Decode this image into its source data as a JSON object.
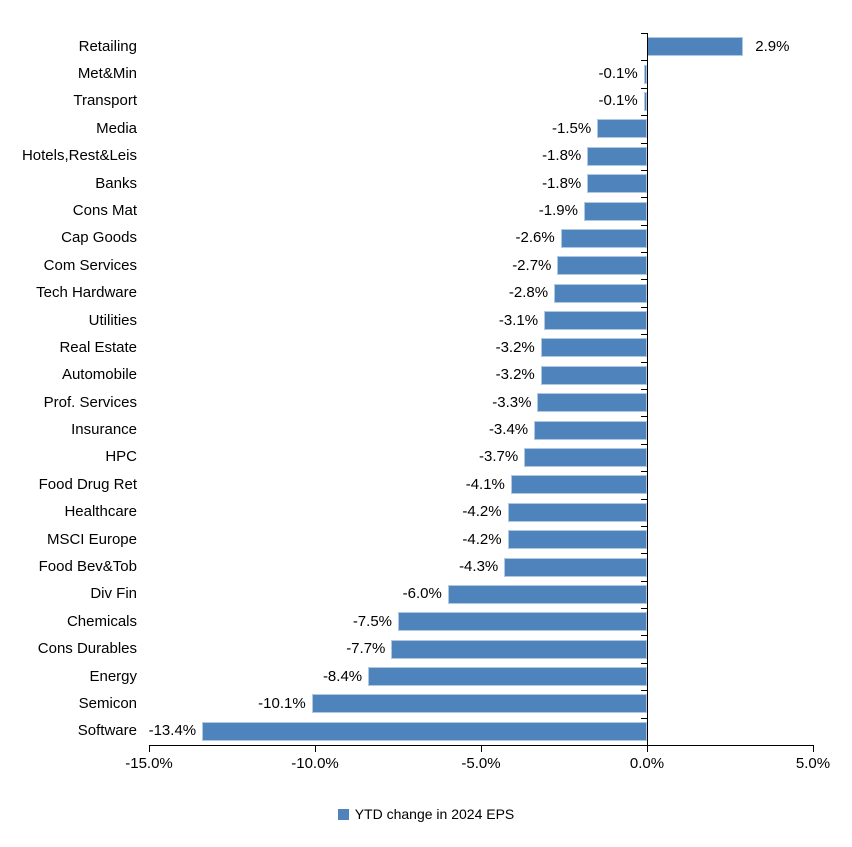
{
  "chart_data": {
    "type": "bar",
    "orientation": "horizontal",
    "title": "",
    "xlabel": "",
    "ylabel": "",
    "xlim": [
      -15,
      5
    ],
    "grid": false,
    "legend_position": "bottom-center",
    "categories": [
      "Retailing",
      "Met&Min",
      "Transport",
      "Media",
      "Hotels,Rest&Leis",
      "Banks",
      "Cons Mat",
      "Cap Goods",
      "Com Services",
      "Tech Hardware",
      "Utilities",
      "Real Estate",
      "Automobile",
      "Prof. Services",
      "Insurance",
      "HPC",
      "Food Drug Ret",
      "Healthcare",
      "MSCI Europe",
      "Food Bev&Tob",
      "Div Fin",
      "Chemicals",
      "Cons Durables",
      "Energy",
      "Semicon",
      "Software"
    ],
    "values": [
      2.9,
      -0.1,
      -0.1,
      -1.5,
      -1.8,
      -1.8,
      -1.9,
      -2.6,
      -2.7,
      -2.8,
      -3.1,
      -3.2,
      -3.2,
      -3.3,
      -3.4,
      -3.7,
      -4.1,
      -4.2,
      -4.2,
      -4.3,
      -6.0,
      -7.5,
      -7.7,
      -8.4,
      -10.1,
      -13.4
    ],
    "value_labels": [
      "2.9%",
      "-0.1%",
      "-0.1%",
      "-1.5%",
      "-1.8%",
      "-1.8%",
      "-1.9%",
      "-2.6%",
      "-2.7%",
      "-2.8%",
      "-3.1%",
      "-3.2%",
      "-3.2%",
      "-3.3%",
      "-3.4%",
      "-3.7%",
      "-4.1%",
      "-4.2%",
      "-4.2%",
      "-4.3%",
      "-6.0%",
      "-7.5%",
      "-7.7%",
      "-8.4%",
      "-10.1%",
      "-13.4%"
    ],
    "x_ticks": [
      -15,
      -10,
      -5,
      0,
      5
    ],
    "x_tick_labels": [
      "-15.0%",
      "-10.0%",
      "-5.0%",
      "0.0%",
      "5.0%"
    ],
    "series_name": "YTD change in 2024 EPS",
    "bar_color": "#4E84BB",
    "bar_border_color": "#AFC9E2",
    "axis_color": "#000000",
    "legend": [
      {
        "label": "YTD change in 2024 EPS",
        "color": "#4E84BB"
      }
    ]
  }
}
